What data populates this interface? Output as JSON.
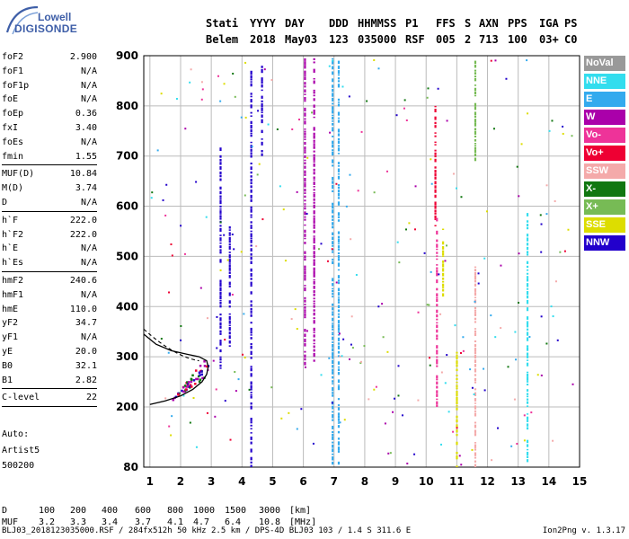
{
  "logo": {
    "line1": "Lowell",
    "line2": "DIGISONDE"
  },
  "header": {
    "row1": [
      "Stati",
      "YYYY",
      "DAY",
      "DDD",
      "HHMMSS",
      "P1",
      "FFS",
      "S",
      "AXN",
      "PPS",
      "IGA",
      "PS"
    ],
    "row2": [
      "Belem",
      "2018",
      "May03",
      "123",
      "035000",
      "RSF",
      "005",
      "2",
      "713",
      "100",
      "03+",
      "C0"
    ]
  },
  "params_groups": [
    [
      {
        "name": "foF2",
        "value": "2.900"
      },
      {
        "name": "foF1",
        "value": "N/A"
      },
      {
        "name": "foF1p",
        "value": "N/A"
      },
      {
        "name": "foE",
        "value": "N/A"
      },
      {
        "name": "foEp",
        "value": "0.36"
      },
      {
        "name": "fxI",
        "value": "3.40"
      },
      {
        "name": "foEs",
        "value": "N/A"
      },
      {
        "name": "fmin",
        "value": "1.55"
      }
    ],
    [
      {
        "name": "MUF(D)",
        "value": "10.84"
      },
      {
        "name": "M(D)",
        "value": "3.74"
      },
      {
        "name": "D",
        "value": "N/A"
      }
    ],
    [
      {
        "name": "h`F",
        "value": "222.0"
      },
      {
        "name": "h`F2",
        "value": "222.0"
      },
      {
        "name": "h`E",
        "value": "N/A"
      },
      {
        "name": "h`Es",
        "value": "N/A"
      }
    ],
    [
      {
        "name": "hmF2",
        "value": "240.6"
      },
      {
        "name": "hmF1",
        "value": "N/A"
      },
      {
        "name": "hmE",
        "value": "110.0"
      },
      {
        "name": "yF2",
        "value": "34.7"
      },
      {
        "name": "yF1",
        "value": "N/A"
      },
      {
        "name": "yE",
        "value": "20.0"
      },
      {
        "name": "B0",
        "value": "32.1"
      },
      {
        "name": "B1",
        "value": "2.82"
      }
    ],
    [
      {
        "name": "C-level",
        "value": "22"
      }
    ]
  ],
  "auto": {
    "line1": "Auto:",
    "line2": "Artist5",
    "line3": "500200"
  },
  "legend": [
    {
      "label": "NoVal",
      "color": "#999999"
    },
    {
      "label": "NNE",
      "color": "#33ddee"
    },
    {
      "label": "E",
      "color": "#33aaee"
    },
    {
      "label": "W",
      "color": "#aa00aa"
    },
    {
      "label": "Vo-",
      "color": "#ee3399"
    },
    {
      "label": "Vo+",
      "color": "#ee0033"
    },
    {
      "label": "SSW",
      "color": "#f4aaaa"
    },
    {
      "label": "X-",
      "color": "#117711"
    },
    {
      "label": "X+",
      "color": "#77bb55"
    },
    {
      "label": "SSE",
      "color": "#dddd00"
    },
    {
      "label": "NNW",
      "color": "#2200cc"
    }
  ],
  "dmuf": {
    "d_label": "D",
    "d_values": [
      "100",
      "200",
      "400",
      "600",
      "800",
      "1000",
      "1500",
      "3000"
    ],
    "d_unit": "[km]",
    "muf_label": "MUF",
    "muf_values": [
      "3.2",
      "3.3",
      "3.4",
      "3.7",
      "4.1",
      "4.7",
      "6.4",
      "10.8"
    ],
    "muf_unit": "[MHz]"
  },
  "footer": {
    "left": "BLJ03_2018123035000.RSF / 284fx512h 50 kHz 2.5 km / DPS-4D BLJ03 103 / 1.4 S 311.6 E",
    "right": "Ion2Png v. 1.3.17"
  },
  "chart_data": {
    "type": "scatter",
    "title": "",
    "xlabel": "",
    "ylabel": "",
    "xlim": [
      0.8,
      15
    ],
    "ylim": [
      80,
      900
    ],
    "x_ticks": [
      1,
      2,
      3,
      4,
      5,
      6,
      7,
      8,
      9,
      10,
      11,
      12,
      13,
      14,
      15
    ],
    "y_ticks": [
      80,
      200,
      300,
      400,
      500,
      600,
      700,
      800,
      900
    ],
    "grid": true,
    "legend_position": "right",
    "traces": [
      {
        "name": "E",
        "color": "#33aaee",
        "kind": "vline",
        "x": 6.95,
        "y_from": 85,
        "y_to": 895
      },
      {
        "name": "E",
        "color": "#33aaee",
        "kind": "vline",
        "x": 7.15,
        "y_from": 85,
        "y_to": 890
      },
      {
        "name": "W",
        "color": "#aa00aa",
        "kind": "vline",
        "x": 6.05,
        "y_from": 280,
        "y_to": 895
      },
      {
        "name": "W",
        "color": "#aa00aa",
        "kind": "vline",
        "x": 6.35,
        "y_from": 290,
        "y_to": 895
      },
      {
        "name": "NNW",
        "color": "#2200cc",
        "kind": "vline",
        "x": 4.3,
        "y_from": 80,
        "y_to": 870
      },
      {
        "name": "NNW",
        "color": "#2200cc",
        "kind": "vline",
        "x": 4.65,
        "y_from": 700,
        "y_to": 880
      },
      {
        "name": "NNW",
        "color": "#2200cc",
        "kind": "vline",
        "x": 3.3,
        "y_from": 260,
        "y_to": 720
      },
      {
        "name": "NNW",
        "color": "#2200cc",
        "kind": "vline",
        "x": 3.6,
        "y_from": 320,
        "y_to": 560
      },
      {
        "name": "Vo+",
        "color": "#ee0033",
        "kind": "vline",
        "x": 10.3,
        "y_from": 560,
        "y_to": 800
      },
      {
        "name": "Vo-",
        "color": "#ee3399",
        "kind": "vline",
        "x": 10.35,
        "y_from": 200,
        "y_to": 580
      },
      {
        "name": "SSE",
        "color": "#dddd00",
        "kind": "vline",
        "x": 10.55,
        "y_from": 420,
        "y_to": 560
      },
      {
        "name": "SSE",
        "color": "#dddd00",
        "kind": "vline",
        "x": 11.0,
        "y_from": 80,
        "y_to": 310
      },
      {
        "name": "SSW",
        "color": "#f4aaaa",
        "kind": "vline",
        "x": 11.6,
        "y_from": 80,
        "y_to": 480
      },
      {
        "name": "X+",
        "color": "#77bb55",
        "kind": "vline",
        "x": 11.6,
        "y_from": 690,
        "y_to": 890
      },
      {
        "name": "NNE",
        "color": "#33ddee",
        "kind": "vline",
        "x": 13.3,
        "y_from": 90,
        "y_to": 600
      },
      {
        "name": "Vo+",
        "color": "#ee0033",
        "kind": "cluster",
        "x_from": 1.7,
        "x_to": 2.9,
        "y_from": 215,
        "y_to": 300
      },
      {
        "name": "E",
        "color": "#33aaee",
        "kind": "scatter",
        "x_from": 1.0,
        "x_to": 14.8,
        "y_from": 85,
        "y_to": 895
      }
    ],
    "trace_curve": {
      "kind": "profile",
      "x": [
        1.0,
        1.5,
        2.0,
        2.4,
        2.7,
        2.85,
        2.9,
        2.85,
        2.6,
        2.2,
        1.7,
        1.2,
        0.8
      ],
      "y": [
        205,
        212,
        222,
        235,
        250,
        265,
        280,
        292,
        300,
        305,
        312,
        325,
        345
      ]
    }
  }
}
